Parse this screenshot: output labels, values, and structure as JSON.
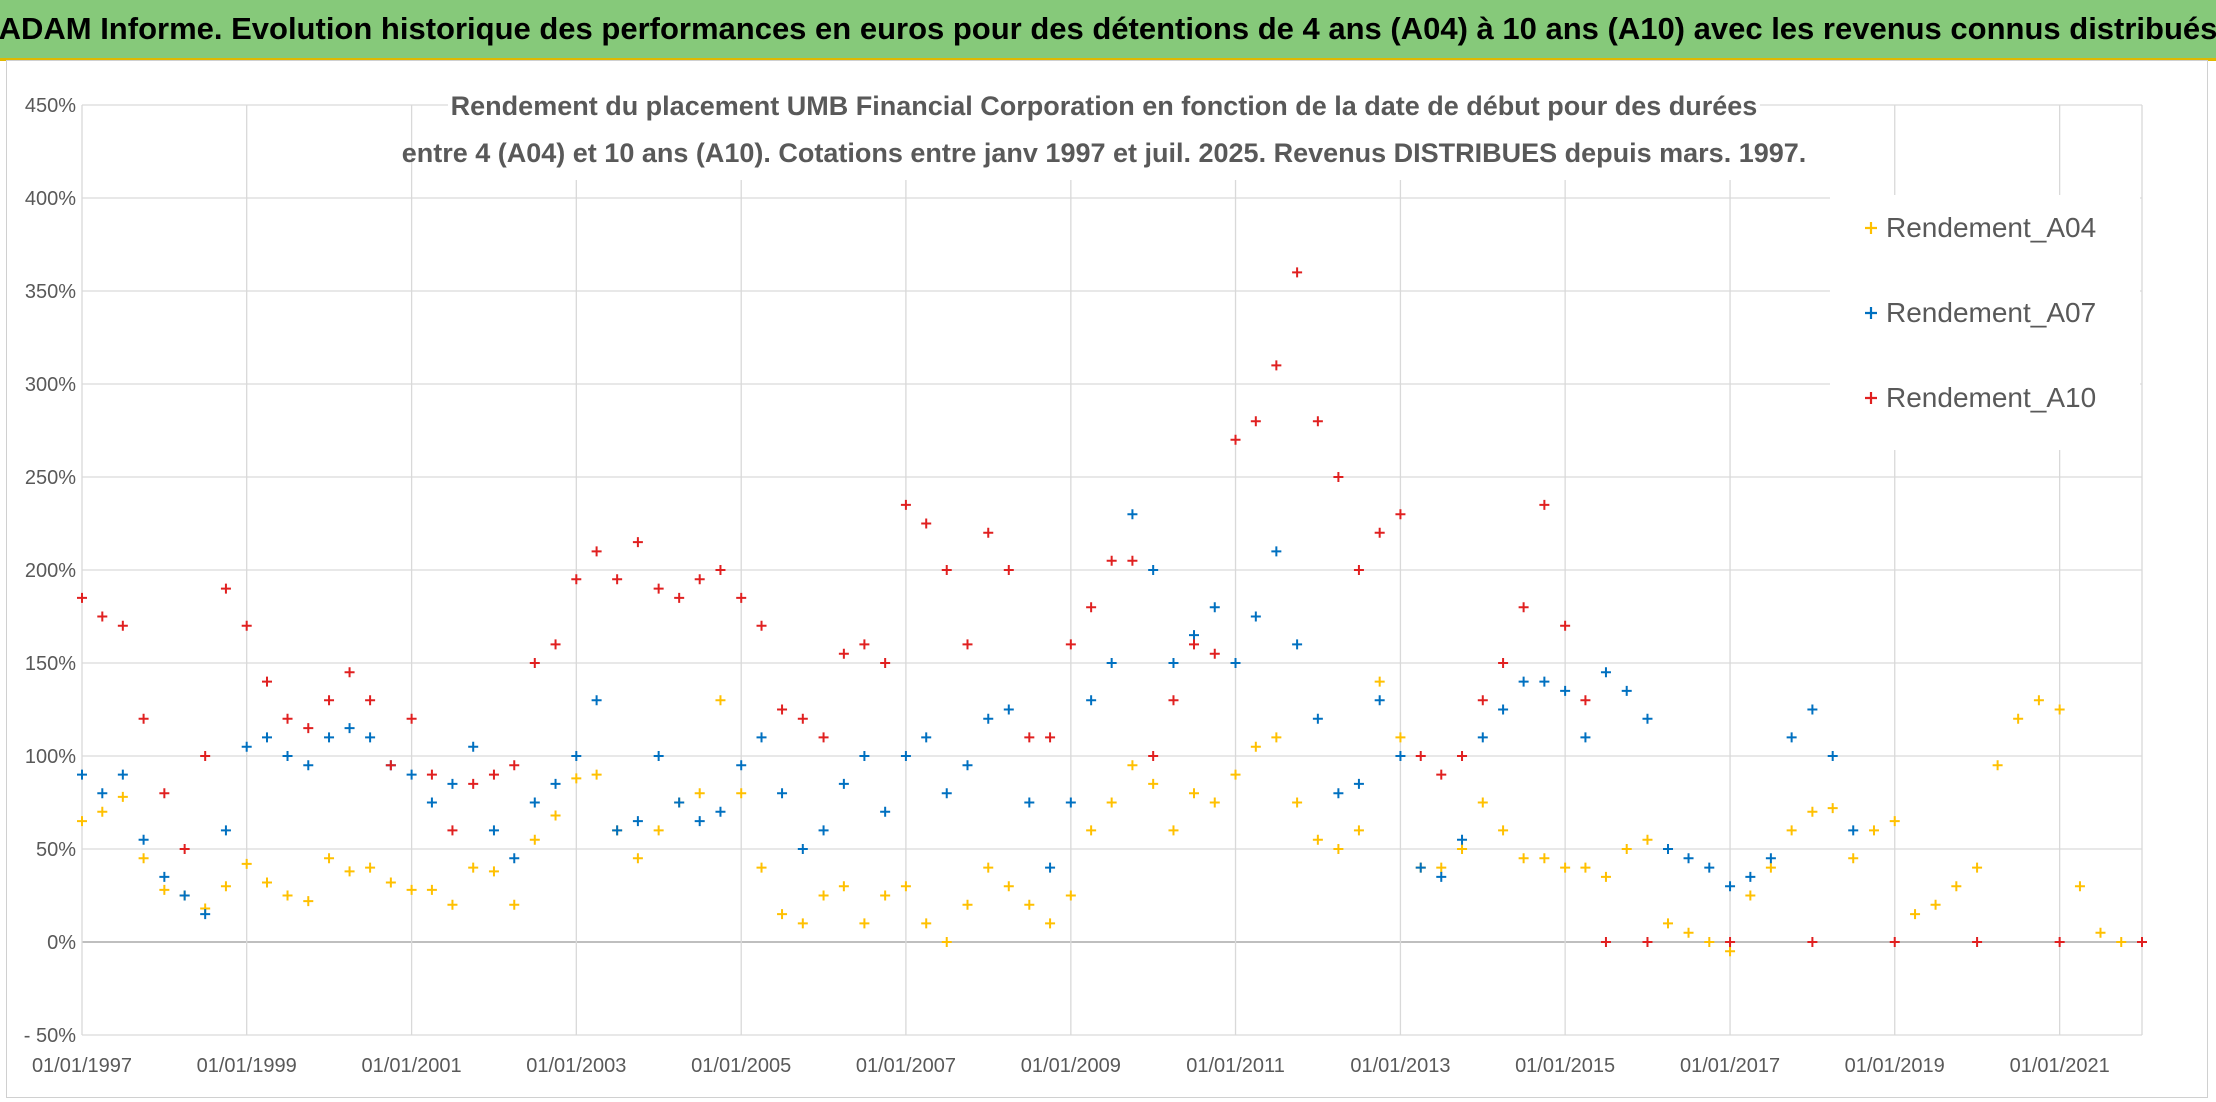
{
  "banner": {
    "title": "ADAM Informe. Evolution historique des performances en euros pour des détentions de 4 ans (A04) à 10 ans (A10) avec les revenus connus distribués"
  },
  "chart_data": {
    "type": "scatter",
    "title_line1": "Rendement du placement UMB Financial Corporation en fonction de la date de début pour des durées",
    "title_line2": "entre 4 (A04) et 10 ans (A10). Cotations entre janv 1997 et juil. 2025. Revenus DISTRIBUES depuis mars. 1997.",
    "ylim": [
      -50,
      450
    ],
    "yticks": [
      -50,
      0,
      50,
      100,
      150,
      200,
      250,
      300,
      350,
      400,
      450
    ],
    "ytick_labels": [
      "- 50%",
      "0%",
      "50%",
      "100%",
      "150%",
      "200%",
      "250%",
      "300%",
      "350%",
      "400%",
      "450%"
    ],
    "xlim": [
      "1997-01-01",
      "2022-01-01"
    ],
    "xticks": [
      "1997-01-01",
      "1999-01-01",
      "2001-01-01",
      "2003-01-01",
      "2005-01-01",
      "2007-01-01",
      "2009-01-01",
      "2011-01-01",
      "2013-01-01",
      "2015-01-01",
      "2017-01-01",
      "2019-01-01",
      "2021-01-01"
    ],
    "xtick_labels": [
      "01/01/1997",
      "01/01/1999",
      "01/01/2001",
      "01/01/2003",
      "01/01/2005",
      "01/01/2007",
      "01/01/2009",
      "01/01/2011",
      "01/01/2013",
      "01/01/2015",
      "01/01/2017",
      "01/01/2019",
      "01/01/2021"
    ],
    "grid": true,
    "legend": "right",
    "marker": "+",
    "series": [
      {
        "name": "Rendement_A04",
        "color": "#ffc000",
        "points": [
          [
            "1997-01-01",
            65
          ],
          [
            "1997-04-01",
            70
          ],
          [
            "1997-07-01",
            78
          ],
          [
            "1997-10-01",
            45
          ],
          [
            "1998-01-01",
            28
          ],
          [
            "1998-04-01",
            25
          ],
          [
            "1998-07-01",
            18
          ],
          [
            "1998-10-01",
            30
          ],
          [
            "1999-01-01",
            42
          ],
          [
            "1999-04-01",
            32
          ],
          [
            "1999-07-01",
            25
          ],
          [
            "1999-10-01",
            22
          ],
          [
            "2000-01-01",
            45
          ],
          [
            "2000-04-01",
            38
          ],
          [
            "2000-07-01",
            40
          ],
          [
            "2000-10-01",
            32
          ],
          [
            "2001-01-01",
            28
          ],
          [
            "2001-04-01",
            28
          ],
          [
            "2001-07-01",
            20
          ],
          [
            "2001-10-01",
            40
          ],
          [
            "2002-01-01",
            38
          ],
          [
            "2002-04-01",
            20
          ],
          [
            "2002-07-01",
            55
          ],
          [
            "2002-10-01",
            68
          ],
          [
            "2003-01-01",
            88
          ],
          [
            "2003-04-01",
            90
          ],
          [
            "2003-07-01",
            60
          ],
          [
            "2003-10-01",
            45
          ],
          [
            "2004-01-01",
            60
          ],
          [
            "2004-04-01",
            75
          ],
          [
            "2004-07-01",
            80
          ],
          [
            "2004-10-01",
            130
          ],
          [
            "2005-01-01",
            80
          ],
          [
            "2005-04-01",
            40
          ],
          [
            "2005-07-01",
            15
          ],
          [
            "2005-10-01",
            10
          ],
          [
            "2006-01-01",
            25
          ],
          [
            "2006-04-01",
            30
          ],
          [
            "2006-07-01",
            10
          ],
          [
            "2006-10-01",
            25
          ],
          [
            "2007-01-01",
            30
          ],
          [
            "2007-04-01",
            10
          ],
          [
            "2007-07-01",
            0
          ],
          [
            "2007-10-01",
            20
          ],
          [
            "2008-01-01",
            40
          ],
          [
            "2008-04-01",
            30
          ],
          [
            "2008-07-01",
            20
          ],
          [
            "2008-10-01",
            10
          ],
          [
            "2009-01-01",
            25
          ],
          [
            "2009-04-01",
            60
          ],
          [
            "2009-07-01",
            75
          ],
          [
            "2009-10-01",
            95
          ],
          [
            "2010-01-01",
            85
          ],
          [
            "2010-04-01",
            60
          ],
          [
            "2010-07-01",
            80
          ],
          [
            "2010-10-01",
            75
          ],
          [
            "2011-01-01",
            90
          ],
          [
            "2011-04-01",
            105
          ],
          [
            "2011-07-01",
            110
          ],
          [
            "2011-10-01",
            75
          ],
          [
            "2012-01-01",
            55
          ],
          [
            "2012-04-01",
            50
          ],
          [
            "2012-07-01",
            60
          ],
          [
            "2012-10-01",
            140
          ],
          [
            "2013-01-01",
            110
          ],
          [
            "2013-04-01",
            40
          ],
          [
            "2013-07-01",
            40
          ],
          [
            "2013-10-01",
            50
          ],
          [
            "2014-01-01",
            75
          ],
          [
            "2014-04-01",
            60
          ],
          [
            "2014-07-01",
            45
          ],
          [
            "2014-10-01",
            45
          ],
          [
            "2015-01-01",
            40
          ],
          [
            "2015-04-01",
            40
          ],
          [
            "2015-07-01",
            35
          ],
          [
            "2015-10-01",
            50
          ],
          [
            "2016-01-01",
            55
          ],
          [
            "2016-04-01",
            10
          ],
          [
            "2016-07-01",
            5
          ],
          [
            "2016-10-01",
            0
          ],
          [
            "2017-01-01",
            -5
          ],
          [
            "2017-04-01",
            25
          ],
          [
            "2017-07-01",
            40
          ],
          [
            "2017-10-01",
            60
          ],
          [
            "2018-01-01",
            70
          ],
          [
            "2018-04-01",
            72
          ],
          [
            "2018-07-01",
            45
          ],
          [
            "2018-10-01",
            60
          ],
          [
            "2019-01-01",
            65
          ],
          [
            "2019-04-01",
            15
          ],
          [
            "2019-07-01",
            20
          ],
          [
            "2019-10-01",
            30
          ],
          [
            "2020-01-01",
            40
          ],
          [
            "2020-04-01",
            95
          ],
          [
            "2020-07-01",
            120
          ],
          [
            "2020-10-01",
            130
          ],
          [
            "2021-01-01",
            125
          ],
          [
            "2021-04-01",
            30
          ],
          [
            "2021-07-01",
            5
          ],
          [
            "2021-10-01",
            0
          ],
          [
            "2022-01-01",
            0
          ]
        ]
      },
      {
        "name": "Rendement_A07",
        "color": "#0070c0",
        "points": [
          [
            "1997-01-01",
            90
          ],
          [
            "1997-04-01",
            80
          ],
          [
            "1997-07-01",
            90
          ],
          [
            "1997-10-01",
            55
          ],
          [
            "1998-01-01",
            35
          ],
          [
            "1998-04-01",
            25
          ],
          [
            "1998-07-01",
            15
          ],
          [
            "1998-10-01",
            60
          ],
          [
            "1999-01-01",
            105
          ],
          [
            "1999-04-01",
            110
          ],
          [
            "1999-07-01",
            100
          ],
          [
            "1999-10-01",
            95
          ],
          [
            "2000-01-01",
            110
          ],
          [
            "2000-04-01",
            115
          ],
          [
            "2000-07-01",
            110
          ],
          [
            "2000-10-01",
            95
          ],
          [
            "2001-01-01",
            90
          ],
          [
            "2001-04-01",
            75
          ],
          [
            "2001-07-01",
            85
          ],
          [
            "2001-10-01",
            105
          ],
          [
            "2002-01-01",
            60
          ],
          [
            "2002-04-01",
            45
          ],
          [
            "2002-07-01",
            75
          ],
          [
            "2002-10-01",
            85
          ],
          [
            "2003-01-01",
            100
          ],
          [
            "2003-04-01",
            130
          ],
          [
            "2003-07-01",
            60
          ],
          [
            "2003-10-01",
            65
          ],
          [
            "2004-01-01",
            100
          ],
          [
            "2004-04-01",
            75
          ],
          [
            "2004-07-01",
            65
          ],
          [
            "2004-10-01",
            70
          ],
          [
            "2005-01-01",
            95
          ],
          [
            "2005-04-01",
            110
          ],
          [
            "2005-07-01",
            80
          ],
          [
            "2005-10-01",
            50
          ],
          [
            "2006-01-01",
            60
          ],
          [
            "2006-04-01",
            85
          ],
          [
            "2006-07-01",
            100
          ],
          [
            "2006-10-01",
            70
          ],
          [
            "2007-01-01",
            100
          ],
          [
            "2007-04-01",
            110
          ],
          [
            "2007-07-01",
            80
          ],
          [
            "2007-10-01",
            95
          ],
          [
            "2008-01-01",
            120
          ],
          [
            "2008-04-01",
            125
          ],
          [
            "2008-07-01",
            75
          ],
          [
            "2008-10-01",
            40
          ],
          [
            "2009-01-01",
            75
          ],
          [
            "2009-04-01",
            130
          ],
          [
            "2009-07-01",
            150
          ],
          [
            "2009-10-01",
            230
          ],
          [
            "2010-01-01",
            200
          ],
          [
            "2010-04-01",
            150
          ],
          [
            "2010-07-01",
            165
          ],
          [
            "2010-10-01",
            180
          ],
          [
            "2011-01-01",
            150
          ],
          [
            "2011-04-01",
            175
          ],
          [
            "2011-07-01",
            210
          ],
          [
            "2011-10-01",
            160
          ],
          [
            "2012-01-01",
            120
          ],
          [
            "2012-04-01",
            80
          ],
          [
            "2012-07-01",
            85
          ],
          [
            "2012-10-01",
            130
          ],
          [
            "2013-01-01",
            100
          ],
          [
            "2013-04-01",
            40
          ],
          [
            "2013-07-01",
            35
          ],
          [
            "2013-10-01",
            55
          ],
          [
            "2014-01-01",
            110
          ],
          [
            "2014-04-01",
            125
          ],
          [
            "2014-07-01",
            140
          ],
          [
            "2014-10-01",
            140
          ],
          [
            "2015-01-01",
            135
          ],
          [
            "2015-04-01",
            110
          ],
          [
            "2015-07-01",
            145
          ],
          [
            "2015-10-01",
            135
          ],
          [
            "2016-01-01",
            120
          ],
          [
            "2016-04-01",
            50
          ],
          [
            "2016-07-01",
            45
          ],
          [
            "2016-10-01",
            40
          ],
          [
            "2017-01-01",
            30
          ],
          [
            "2017-04-01",
            35
          ],
          [
            "2017-07-01",
            45
          ],
          [
            "2017-10-01",
            110
          ],
          [
            "2018-01-01",
            125
          ],
          [
            "2018-04-01",
            100
          ],
          [
            "2018-07-01",
            60
          ]
        ]
      },
      {
        "name": "Rendement_A10",
        "color": "#e02020",
        "points": [
          [
            "1997-01-01",
            185
          ],
          [
            "1997-04-01",
            175
          ],
          [
            "1997-07-01",
            170
          ],
          [
            "1997-10-01",
            120
          ],
          [
            "1998-01-01",
            80
          ],
          [
            "1998-04-01",
            50
          ],
          [
            "1998-07-01",
            100
          ],
          [
            "1998-10-01",
            190
          ],
          [
            "1999-01-01",
            170
          ],
          [
            "1999-04-01",
            140
          ],
          [
            "1999-07-01",
            120
          ],
          [
            "1999-10-01",
            115
          ],
          [
            "2000-01-01",
            130
          ],
          [
            "2000-04-01",
            145
          ],
          [
            "2000-07-01",
            130
          ],
          [
            "2000-10-01",
            95
          ],
          [
            "2001-01-01",
            120
          ],
          [
            "2001-04-01",
            90
          ],
          [
            "2001-07-01",
            60
          ],
          [
            "2001-10-01",
            85
          ],
          [
            "2002-01-01",
            90
          ],
          [
            "2002-04-01",
            95
          ],
          [
            "2002-07-01",
            150
          ],
          [
            "2002-10-01",
            160
          ],
          [
            "2003-01-01",
            195
          ],
          [
            "2003-04-01",
            210
          ],
          [
            "2003-07-01",
            195
          ],
          [
            "2003-10-01",
            215
          ],
          [
            "2004-01-01",
            190
          ],
          [
            "2004-04-01",
            185
          ],
          [
            "2004-07-01",
            195
          ],
          [
            "2004-10-01",
            200
          ],
          [
            "2005-01-01",
            185
          ],
          [
            "2005-04-01",
            170
          ],
          [
            "2005-07-01",
            125
          ],
          [
            "2005-10-01",
            120
          ],
          [
            "2006-01-01",
            110
          ],
          [
            "2006-04-01",
            155
          ],
          [
            "2006-07-01",
            160
          ],
          [
            "2006-10-01",
            150
          ],
          [
            "2007-01-01",
            235
          ],
          [
            "2007-04-01",
            225
          ],
          [
            "2007-07-01",
            200
          ],
          [
            "2007-10-01",
            160
          ],
          [
            "2008-01-01",
            220
          ],
          [
            "2008-04-01",
            200
          ],
          [
            "2008-07-01",
            110
          ],
          [
            "2008-10-01",
            110
          ],
          [
            "2009-01-01",
            160
          ],
          [
            "2009-04-01",
            180
          ],
          [
            "2009-07-01",
            205
          ],
          [
            "2009-10-01",
            205
          ],
          [
            "2010-01-01",
            100
          ],
          [
            "2010-04-01",
            130
          ],
          [
            "2010-07-01",
            160
          ],
          [
            "2010-10-01",
            155
          ],
          [
            "2011-01-01",
            270
          ],
          [
            "2011-04-01",
            280
          ],
          [
            "2011-07-01",
            310
          ],
          [
            "2011-10-01",
            360
          ],
          [
            "2012-01-01",
            280
          ],
          [
            "2012-04-01",
            250
          ],
          [
            "2012-07-01",
            200
          ],
          [
            "2012-10-01",
            220
          ],
          [
            "2013-01-01",
            230
          ],
          [
            "2013-04-01",
            100
          ],
          [
            "2013-07-01",
            90
          ],
          [
            "2013-10-01",
            100
          ],
          [
            "2014-01-01",
            130
          ],
          [
            "2014-04-01",
            150
          ],
          [
            "2014-07-01",
            180
          ],
          [
            "2014-10-01",
            235
          ],
          [
            "2015-01-01",
            170
          ],
          [
            "2015-04-01",
            130
          ],
          [
            "2015-07-01",
            0
          ],
          [
            "2016-01-01",
            0
          ],
          [
            "2017-01-01",
            0
          ],
          [
            "2018-01-01",
            0
          ],
          [
            "2019-01-01",
            0
          ],
          [
            "2020-01-01",
            0
          ],
          [
            "2021-01-01",
            0
          ],
          [
            "2022-01-01",
            0
          ]
        ]
      }
    ]
  }
}
